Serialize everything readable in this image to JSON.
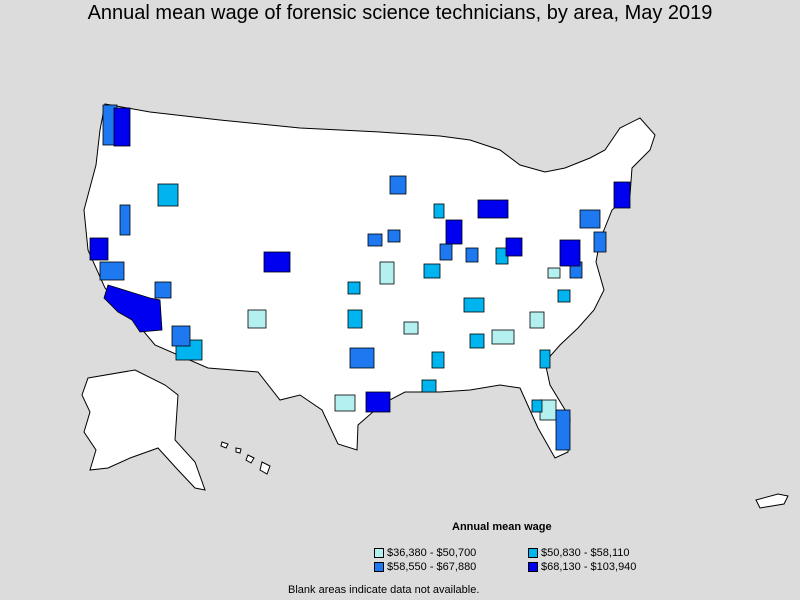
{
  "title": "Annual mean wage of forensic science technicians, by area, May 2019",
  "legend": {
    "title": "Annual mean wage",
    "items": [
      {
        "label": "$36,380 - $50,700",
        "color": "#b4f0f0"
      },
      {
        "label": "$50,830 - $58,110",
        "color": "#00b4f0"
      },
      {
        "label": "$58,550 - $67,880",
        "color": "#1e78f0"
      },
      {
        "label": "$68,130 - $103,940",
        "color": "#0000f0"
      }
    ]
  },
  "footnote": "Blank areas indicate data not available."
}
